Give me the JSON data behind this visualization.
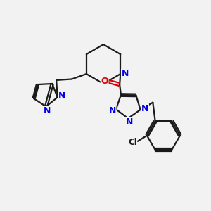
{
  "background_color": "#f2f2f2",
  "bond_color": "#1a1a1a",
  "N_color": "#0000ee",
  "O_color": "#dd0000",
  "Cl_color": "#1a1a1a",
  "line_width": 1.6,
  "figsize": [
    3.0,
    3.0
  ],
  "dpi": 100,
  "xlim": [
    0,
    10
  ],
  "ylim": [
    0,
    10
  ]
}
